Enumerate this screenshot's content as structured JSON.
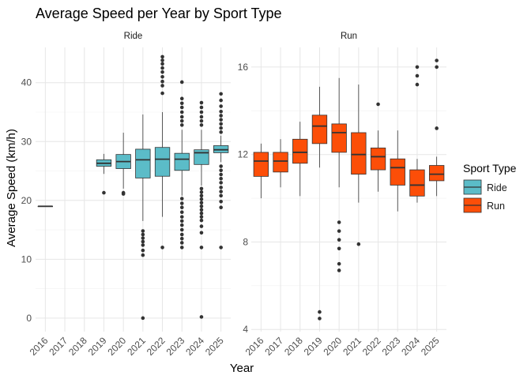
{
  "chart_data": {
    "type": "boxplot",
    "title": "Average Speed per Year by Sport Type",
    "xlabel": "Year",
    "ylabel": "Average Speed (km/h)",
    "categories": [
      "2016",
      "2017",
      "2018",
      "2019",
      "2020",
      "2021",
      "2022",
      "2023",
      "2024",
      "2025"
    ],
    "legend": {
      "title": "Sport Type",
      "position": "right"
    },
    "grid": true,
    "panels": [
      {
        "name": "Ride",
        "color": "#5bbcc8",
        "ylim": [
          -2.3,
          46
        ],
        "yticks": [
          0,
          10,
          20,
          30,
          40
        ],
        "boxes": [
          {
            "year": "2016",
            "q1": 19.0,
            "median": 19.0,
            "q3": 19.0,
            "lower": 18.9,
            "upper": 19.1,
            "outliers": []
          },
          {
            "year": "2019",
            "q1": 25.8,
            "median": 26.3,
            "q3": 26.9,
            "lower": 24.5,
            "upper": 27.9,
            "outliers": [
              21.3
            ]
          },
          {
            "year": "2020",
            "q1": 25.4,
            "median": 26.6,
            "q3": 27.8,
            "lower": 22.0,
            "upper": 31.5,
            "outliers": [
              21.1,
              21.3
            ]
          },
          {
            "year": "2021",
            "q1": 23.8,
            "median": 26.9,
            "q3": 28.7,
            "lower": 16.5,
            "upper": 34.6,
            "outliers": [
              14.8,
              14.2,
              13.6,
              13.0,
              12.4,
              11.5,
              10.7,
              0.0
            ]
          },
          {
            "year": "2022",
            "q1": 24.1,
            "median": 27.0,
            "q3": 29.0,
            "lower": 17.2,
            "upper": 35.0,
            "outliers": [
              12.0,
              38.2,
              39.5,
              40.2,
              41.0,
              41.8,
              42.5,
              43.2,
              43.8,
              44.4
            ]
          },
          {
            "year": "2023",
            "q1": 25.1,
            "median": 27.0,
            "q3": 28.0,
            "lower": 20.8,
            "upper": 32.0,
            "outliers": [
              12.0,
              12.8,
              13.5,
              14.2,
              15.0,
              15.8,
              16.5,
              17.2,
              18.0,
              18.8,
              19.5,
              20.3,
              32.8,
              33.5,
              34.2,
              35.0,
              35.8,
              36.5,
              37.3,
              40.1
            ]
          },
          {
            "year": "2024",
            "q1": 26.1,
            "median": 28.1,
            "q3": 28.6,
            "lower": 22.5,
            "upper": 32.0,
            "outliers": [
              0.2,
              12.0,
              14.5,
              15.6,
              16.6,
              17.2,
              17.8,
              18.4,
              19.0,
              19.6,
              20.2,
              20.8,
              21.4,
              22.0,
              32.8,
              33.5,
              34.2,
              35.0,
              35.8,
              36.6
            ]
          },
          {
            "year": "2025",
            "q1": 28.1,
            "median": 28.6,
            "q3": 29.3,
            "lower": 26.5,
            "upper": 31.0,
            "outliers": [
              12.0,
              18.8,
              19.8,
              20.8,
              21.5,
              22.2,
              23.0,
              23.7,
              24.4,
              25.1,
              25.8,
              31.6,
              32.3,
              33.0,
              33.7,
              34.4,
              35.1,
              36.0,
              37.0,
              38.1
            ]
          }
        ]
      },
      {
        "name": "Run",
        "color": "#fc4e08",
        "ylim": [
          3.9,
          16.9
        ],
        "yticks": [
          4,
          8,
          12,
          16
        ],
        "boxes": [
          {
            "year": "2016",
            "q1": 11.0,
            "median": 11.7,
            "q3": 12.1,
            "lower": 10.0,
            "upper": 12.5,
            "outliers": []
          },
          {
            "year": "2017",
            "q1": 11.2,
            "median": 11.7,
            "q3": 12.1,
            "lower": 10.5,
            "upper": 12.7,
            "outliers": []
          },
          {
            "year": "2018",
            "q1": 11.6,
            "median": 12.1,
            "q3": 12.7,
            "lower": 10.1,
            "upper": 13.5,
            "outliers": []
          },
          {
            "year": "2019",
            "q1": 12.5,
            "median": 13.3,
            "q3": 13.8,
            "lower": 11.4,
            "upper": 15.1,
            "outliers": [
              4.5,
              4.8
            ]
          },
          {
            "year": "2020",
            "q1": 12.1,
            "median": 13.0,
            "q3": 13.4,
            "lower": 10.5,
            "upper": 15.5,
            "outliers": [
              6.7,
              7.0,
              7.7,
              8.1,
              8.5,
              8.9
            ]
          },
          {
            "year": "2021",
            "q1": 11.1,
            "median": 12.0,
            "q3": 13.0,
            "lower": 9.8,
            "upper": 15.2,
            "outliers": [
              7.9
            ]
          },
          {
            "year": "2022",
            "q1": 11.3,
            "median": 11.9,
            "q3": 12.3,
            "lower": 10.3,
            "upper": 13.1,
            "outliers": [
              14.3
            ]
          },
          {
            "year": "2023",
            "q1": 10.6,
            "median": 11.4,
            "q3": 11.8,
            "lower": 9.4,
            "upper": 13.1,
            "outliers": []
          },
          {
            "year": "2024",
            "q1": 10.1,
            "median": 10.6,
            "q3": 11.3,
            "lower": 9.8,
            "upper": 11.8,
            "outliers": [
              15.2,
              15.6,
              16.0
            ]
          },
          {
            "year": "2025",
            "q1": 10.8,
            "median": 11.1,
            "q3": 11.5,
            "lower": 10.1,
            "upper": 11.9,
            "outliers": [
              13.2,
              16.0,
              16.3
            ]
          }
        ]
      }
    ]
  }
}
